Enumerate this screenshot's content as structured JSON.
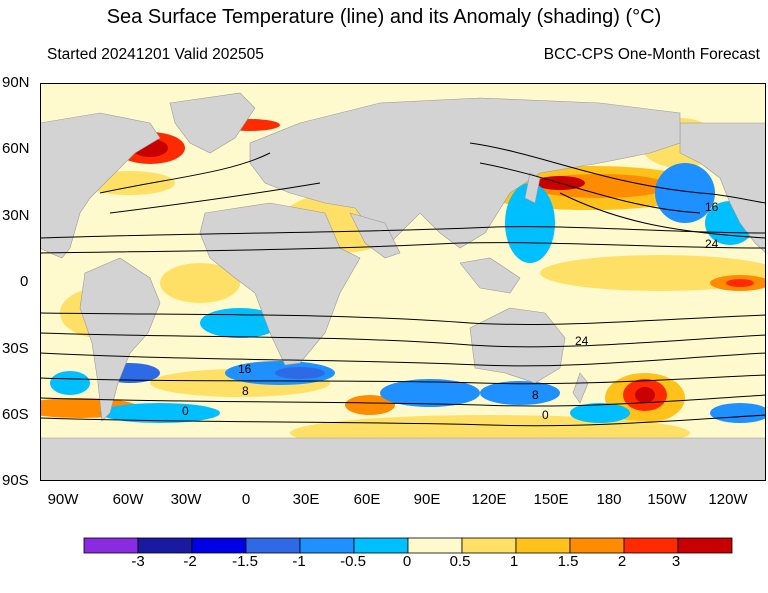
{
  "header": {
    "title": "Sea Surface Temperature (line) and its Anomaly (shading) (°C)",
    "started": "Started 20241201  Valid 202505",
    "product": "BCC-CPS One-Month Forecast"
  },
  "axes": {
    "lat_labels": [
      "90N",
      "60N",
      "30N",
      "0",
      "30S",
      "60S",
      "90S"
    ],
    "lon_labels": [
      "90W",
      "60W",
      "30W",
      "0",
      "30E",
      "60E",
      "90E",
      "120E",
      "150E",
      "180",
      "150W",
      "120W"
    ]
  },
  "contour_labels": [
    "16",
    "24",
    "24",
    "16",
    "8",
    "8",
    "0",
    "0"
  ],
  "colorbar": {
    "labels": [
      "-3",
      "-2",
      "-1.5",
      "-1",
      "-0.5",
      "0",
      "0.5",
      "1",
      "1.5",
      "2",
      "3"
    ],
    "colors": [
      "#8a2be2",
      "#1a1aa0",
      "#0000e6",
      "#2e6ae6",
      "#1e90ff",
      "#00bfff",
      "#fffacd",
      "#ffe066",
      "#ffc21a",
      "#ff8c00",
      "#ff2a00",
      "#c80000"
    ]
  },
  "colors": {
    "land": "#d3d3d3",
    "contour": "#000000",
    "neutral_ocean": "#fffacd"
  }
}
